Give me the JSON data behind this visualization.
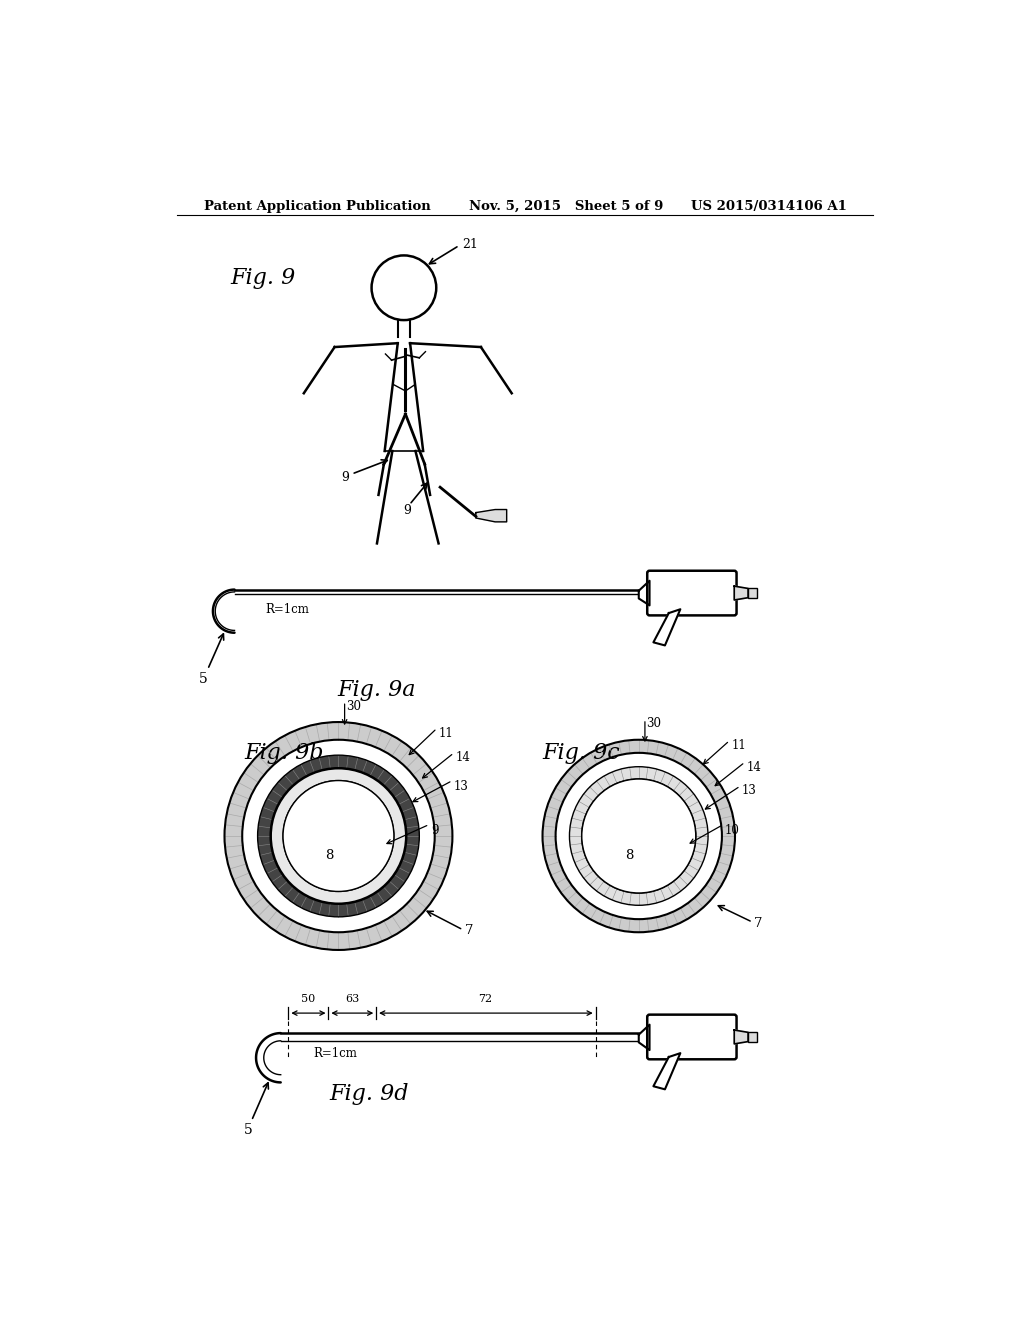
{
  "background_color": "#ffffff",
  "header_left": "Patent Application Publication",
  "header_mid": "Nov. 5, 2015   Sheet 5 of 9",
  "header_right": "US 2015/0314106 A1",
  "line_color": "#000000",
  "fig9_label": "Fig. 9",
  "fig9a_label": "Fig. 9a",
  "fig9b_label": "Fig. 9b",
  "fig9c_label": "Fig. 9c",
  "fig9d_label": "Fig. 9d"
}
